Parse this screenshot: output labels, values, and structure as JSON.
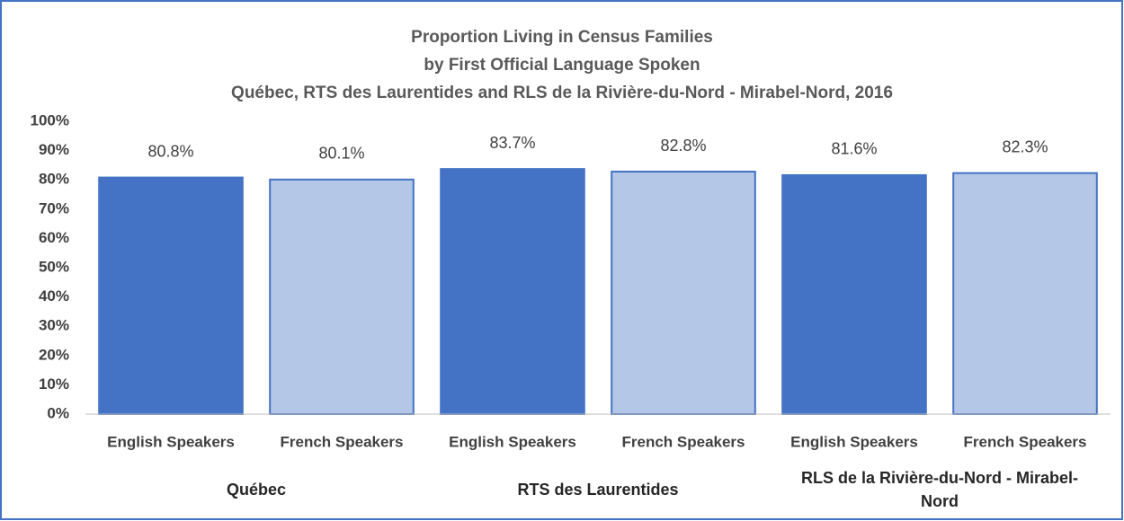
{
  "chart_data": {
    "type": "bar",
    "title": [
      "Proportion Living in Census Families",
      "by First Official Language Spoken",
      "Québec, RTS des Laurentides and RLS de la Rivière-du-Nord - Mirabel-Nord, 2016"
    ],
    "categories": [
      "English Speakers",
      "French Speakers",
      "English Speakers",
      "French Speakers",
      "English Speakers",
      "French Speakers"
    ],
    "groups": [
      "Québec",
      "RTS des Laurentides",
      "RLS de la Rivière-du-Nord - Mirabel-Nord"
    ],
    "values": [
      80.8,
      80.1,
      83.7,
      82.8,
      81.6,
      82.3
    ],
    "value_labels": [
      "80.8%",
      "80.1%",
      "83.7%",
      "82.8%",
      "81.6%",
      "82.3%"
    ],
    "colors": [
      "#4472c4",
      "#b4c7e7",
      "#4472c4",
      "#b4c7e7",
      "#4472c4",
      "#b4c7e7"
    ],
    "edge_color": "#4472c4",
    "ylim": [
      0,
      100
    ],
    "yticks": [
      {
        "value": 0,
        "label": "0%"
      },
      {
        "value": 10,
        "label": "10%"
      },
      {
        "value": 20,
        "label": "20%"
      },
      {
        "value": 30,
        "label": "30%"
      },
      {
        "value": 40,
        "label": "40%"
      },
      {
        "value": 50,
        "label": "50%"
      },
      {
        "value": 60,
        "label": "60%"
      },
      {
        "value": 70,
        "label": "70%"
      },
      {
        "value": 80,
        "label": "80%"
      },
      {
        "value": 90,
        "label": "90%"
      },
      {
        "value": 100,
        "label": "100%"
      }
    ],
    "grid": false
  }
}
